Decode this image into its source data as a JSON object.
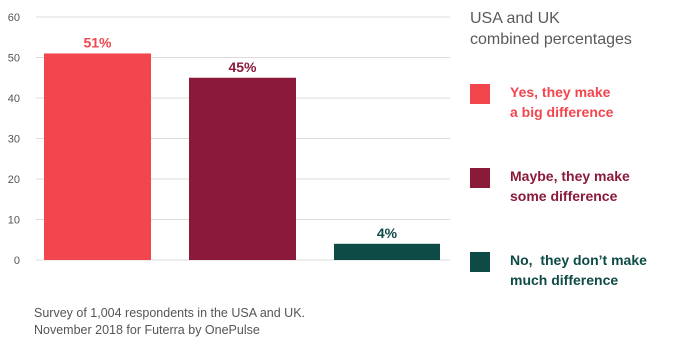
{
  "chart_data": {
    "type": "bar",
    "categories": [
      "Yes, they make a big difference",
      "Maybe, they make some difference",
      "No, they don't make much difference"
    ],
    "values": [
      51,
      45,
      4
    ],
    "data_labels": [
      "51%",
      "45%",
      "4%"
    ],
    "colors": [
      "#f2454d",
      "#8b1a3a",
      "#0e4a46"
    ],
    "ylim": [
      0,
      60
    ],
    "yticks": [
      0,
      10,
      20,
      30,
      40,
      50,
      60
    ],
    "grid": true,
    "legend_position": "right",
    "xlabel": "",
    "ylabel": ""
  },
  "legend": {
    "title_line1": "USA and UK",
    "title_line2": "combined percentages",
    "items": [
      {
        "line1": "Yes, they make",
        "line2": "a big difference",
        "color": "#f2454d"
      },
      {
        "line1": "Maybe, they make",
        "line2": "some difference",
        "color": "#8b1a3a"
      },
      {
        "line1": "No,  they don’t make",
        "line2": "much difference",
        "color": "#0e4a46"
      }
    ]
  },
  "footnote": {
    "line1": "Survey of 1,004 respondents in the USA and UK.",
    "line2": "November 2018 for Futerra by OnePulse"
  }
}
